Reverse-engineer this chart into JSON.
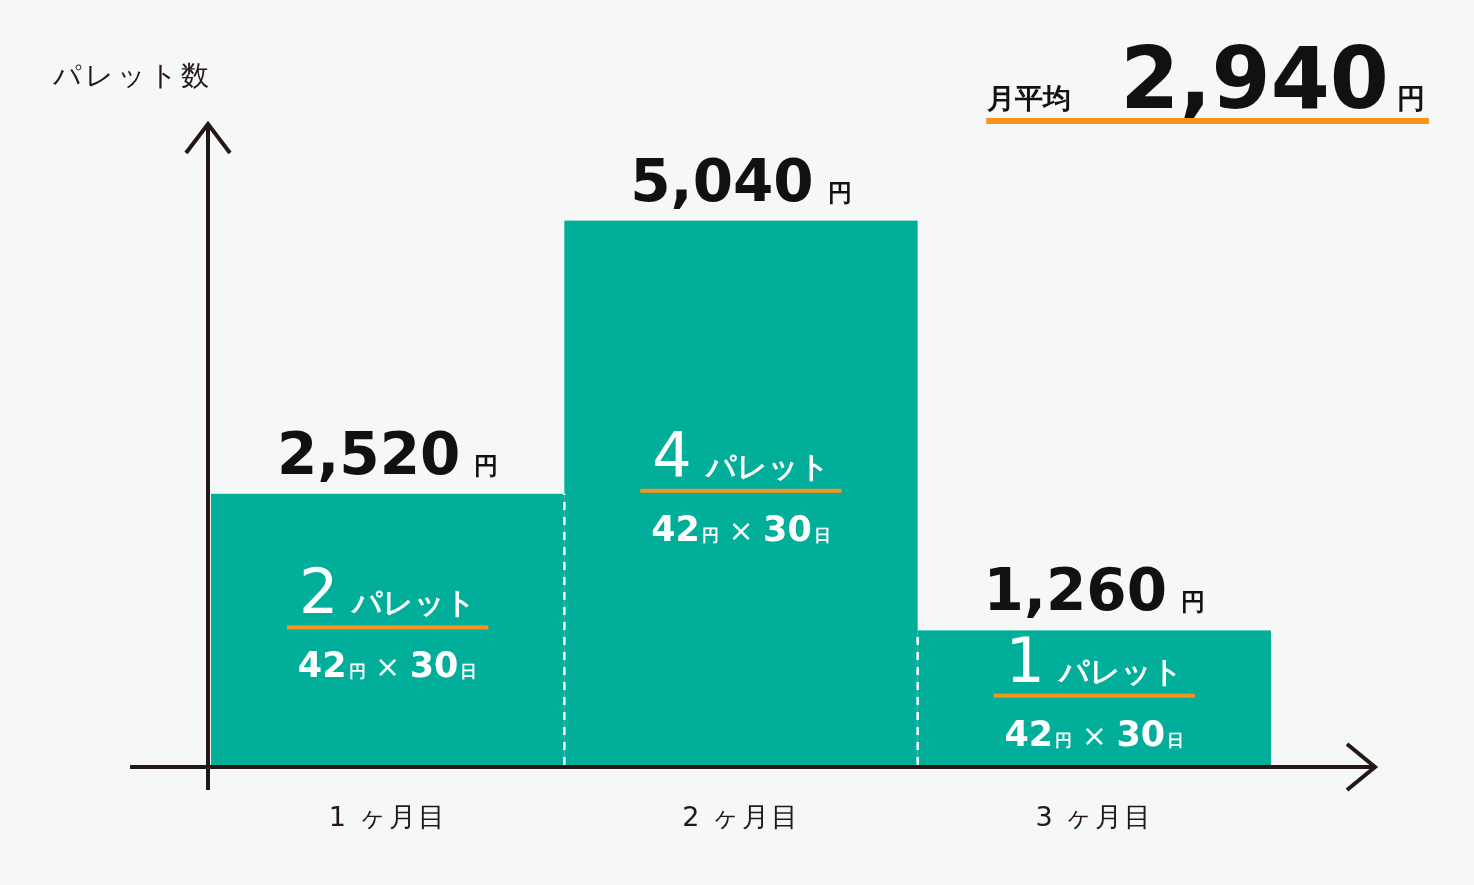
{
  "chart_data": {
    "type": "bar",
    "ylabel": "パレット数",
    "categories": [
      "1 ヶ月目",
      "2 ヶ月目",
      "3 ヶ月目"
    ],
    "values": [
      2,
      4,
      1
    ],
    "color": "#00ae9a",
    "ylim": [
      0,
      4.7
    ],
    "tick_labels": "x",
    "value_labels": [
      "2パレット",
      "4パレット",
      "1パレット"
    ],
    "annotations": [
      {
        "text": "2,520円",
        "x": "1 ヶ月目",
        "y": 2
      },
      {
        "text": "5,040円",
        "x": "2 ヶ月目",
        "y": 4
      },
      {
        "text": "1,260円",
        "x": "3 ヶ月目",
        "y": 1
      },
      "42円 × 30日",
      "42円 × 30日",
      "42円 × 30日",
      "月平均 2,940円"
    ]
  }
}
